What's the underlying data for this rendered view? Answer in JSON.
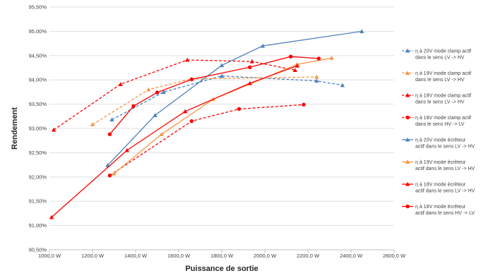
{
  "chart_data": {
    "type": "line",
    "title": "",
    "xlabel": "Puissance de sortie",
    "ylabel": "Rendement",
    "xlim": [
      1000,
      2600
    ],
    "ylim": [
      90.5,
      95.5
    ],
    "xticks": [
      1000,
      1200,
      1400,
      1600,
      1800,
      2000,
      2200,
      2400,
      2600
    ],
    "xtick_labels": [
      "1000,0 W",
      "1200,0 W",
      "1400,0 W",
      "1600,0 W",
      "1800,0 W",
      "2000,0 W",
      "2200,0 W",
      "2400,0 W",
      "2600,0 W"
    ],
    "yticks": [
      90.5,
      91.0,
      91.5,
      92.0,
      92.5,
      93.0,
      93.5,
      94.0,
      94.5,
      95.0,
      95.5
    ],
    "ytick_labels": [
      "90,50%",
      "91,00%",
      "91,50%",
      "92,00%",
      "92,50%",
      "93,00%",
      "93,50%",
      "94,00%",
      "94,50%",
      "95,00%",
      "95,50%"
    ],
    "grid": "horizontal",
    "legend_position": "right",
    "series": [
      {
        "name": "η à 20V mode clamp actif dans le sens LV -> HV",
        "color": "#4f81bd",
        "dash": true,
        "marker": "triangle",
        "x": [
          1290,
          1530,
          1800,
          2240,
          2360
        ],
        "y": [
          93.18,
          93.75,
          94.08,
          93.98,
          93.89
        ]
      },
      {
        "name": "η à 19V mode clamp actif dans le sens LV -> HV",
        "color": "#f79646",
        "dash": true,
        "marker": "triangle",
        "x": [
          1200,
          1460,
          1660,
          2240
        ],
        "y": [
          93.08,
          93.8,
          94.02,
          94.06
        ]
      },
      {
        "name": "η à 18V mode clamp actif dans le sens LV -> HV",
        "color": "#ff0000",
        "dash": true,
        "marker": "triangle",
        "x": [
          1020,
          1330,
          1640,
          1940,
          2140
        ],
        "y": [
          92.97,
          93.91,
          94.41,
          94.38,
          94.2
        ]
      },
      {
        "name": "η à 18V mode clamp actif dans le sens HV -> LV",
        "color": "#ff0000",
        "dash": true,
        "marker": "circle",
        "x": [
          1280,
          1660,
          1880,
          2180
        ],
        "y": [
          92.03,
          93.15,
          93.4,
          93.49
        ]
      },
      {
        "name": "η à 20V mode écrêteur actif dans le sens LV -> HV",
        "color": "#4f81bd",
        "dash": false,
        "marker": "triangle",
        "x": [
          1270,
          1490,
          1800,
          1990,
          2450
        ],
        "y": [
          92.24,
          93.27,
          94.3,
          94.7,
          95.0
        ]
      },
      {
        "name": "η à 19V mode écrêteur actif dans le sens LV -> HV",
        "color": "#f79646",
        "dash": false,
        "marker": "triangle",
        "x": [
          1300,
          1520,
          1760,
          2150,
          2310
        ],
        "y": [
          92.07,
          92.88,
          93.6,
          94.32,
          94.45
        ]
      },
      {
        "name": "η à 18V mode écrêteur actif dans le sens LV -> HV",
        "color": "#ff0000",
        "dash": false,
        "marker": "triangle",
        "x": [
          1010,
          1360,
          1630,
          1930,
          2150
        ],
        "y": [
          91.17,
          92.55,
          93.35,
          93.93,
          94.29
        ]
      },
      {
        "name": "η à 18V mode écrêteur actif dans le sens HV -> LV",
        "color": "#ff0000",
        "dash": false,
        "marker": "circle",
        "x": [
          1280,
          1390,
          1500,
          1660,
          1930,
          2120,
          2250
        ],
        "y": [
          92.88,
          93.46,
          93.74,
          94.01,
          94.26,
          94.48,
          94.44
        ]
      }
    ]
  }
}
